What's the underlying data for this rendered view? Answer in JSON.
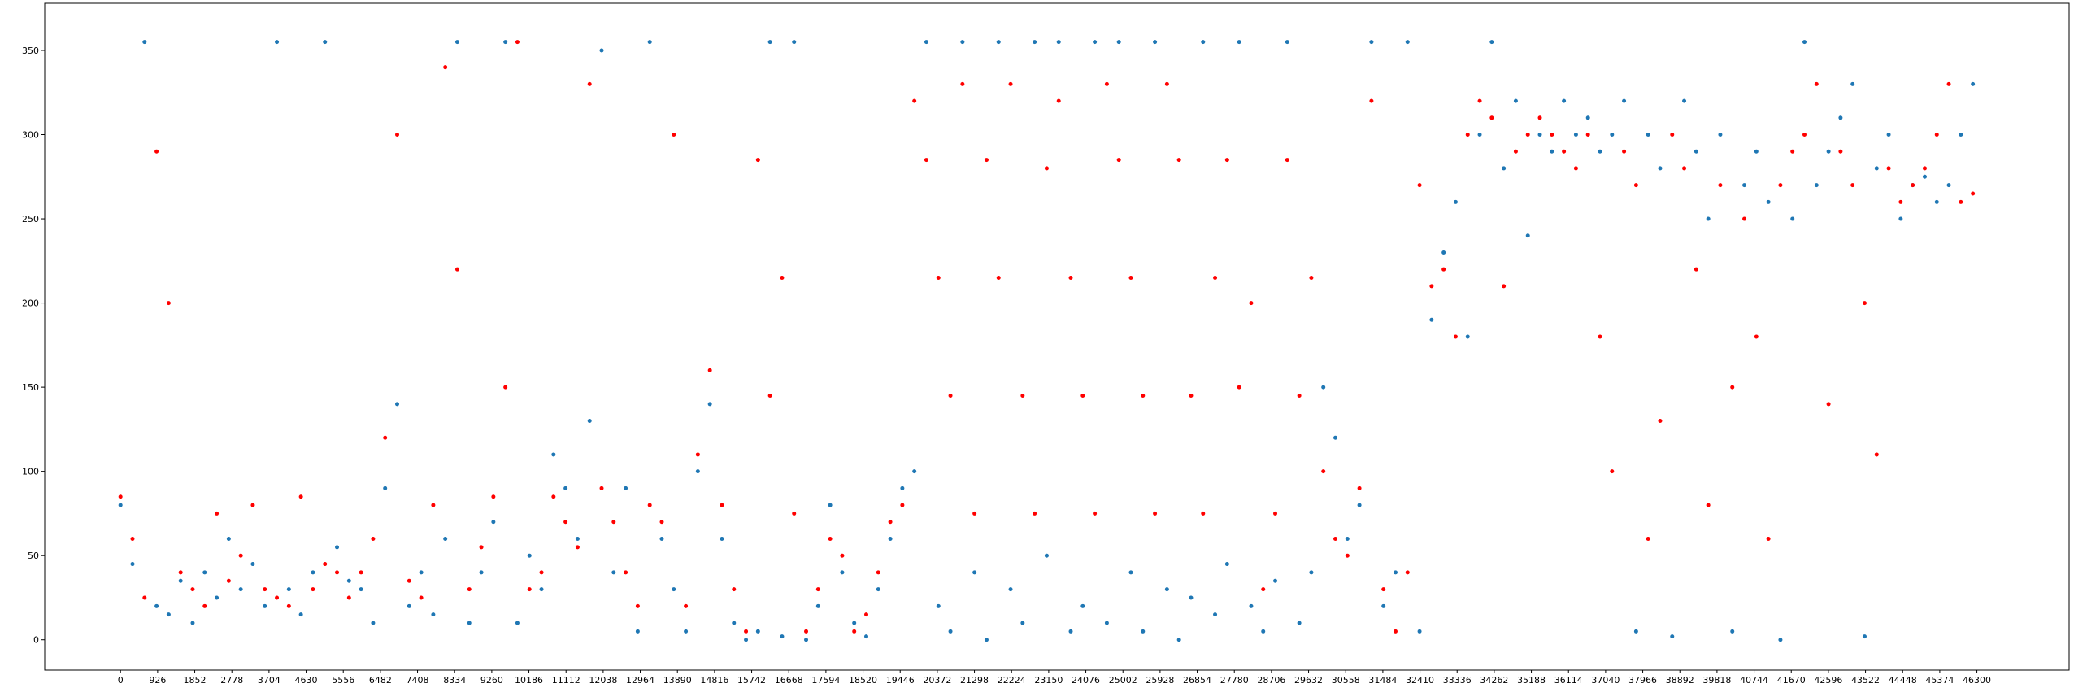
{
  "chart_data": {
    "type": "scatter",
    "x": [
      0,
      300,
      600,
      900,
      1200,
      1500,
      1800,
      2100,
      2400,
      2700,
      3000,
      3300,
      3600,
      3900,
      4200,
      4500,
      4800,
      5100,
      5400,
      5700,
      6000,
      6300,
      6600,
      6900,
      7200,
      7500,
      7800,
      8100,
      8400,
      8700,
      9000,
      9300,
      9600,
      9900,
      10200,
      10500,
      10800,
      11100,
      11400,
      11700,
      12000,
      12300,
      12600,
      12900,
      13200,
      13500,
      13800,
      14100,
      14400,
      14700,
      15000,
      15300,
      15600,
      15900,
      16200,
      16500,
      16800,
      17100,
      17400,
      17700,
      18000,
      18300,
      18600,
      18900,
      19200,
      19500,
      19800,
      20100,
      20400,
      20700,
      21000,
      21300,
      21600,
      21900,
      22200,
      22500,
      22800,
      23100,
      23400,
      23700,
      24000,
      24300,
      24600,
      24900,
      25200,
      25500,
      25800,
      26100,
      26400,
      26700,
      27000,
      27300,
      27600,
      27900,
      28200,
      28500,
      28800,
      29100,
      29400,
      29700,
      30000,
      30300,
      30600,
      30900,
      31200,
      31500,
      31800,
      32100,
      32400,
      32700,
      33000,
      33300,
      33600,
      33900,
      34200,
      34500,
      34800,
      35100,
      35400,
      35700,
      36000,
      36300,
      36600,
      36900,
      37200,
      37500,
      37800,
      38100,
      38400,
      38700,
      39000,
      39300,
      39600,
      39900,
      40200,
      40500,
      40800,
      41100,
      41400,
      41700,
      42000,
      42300,
      42600,
      42900,
      43200,
      43500,
      43800,
      44100,
      44400,
      44700,
      45000,
      45300,
      45600,
      45900,
      46200
    ],
    "series": [
      {
        "color": "#1f77b4",
        "values": [
          80,
          45,
          355,
          20,
          15,
          35,
          10,
          40,
          25,
          60,
          30,
          45,
          20,
          355,
          30,
          15,
          40,
          355,
          55,
          35,
          30,
          10,
          90,
          140,
          20,
          40,
          15,
          60,
          355,
          10,
          40,
          70,
          355,
          10,
          50,
          30,
          110,
          90,
          60,
          130,
          350,
          40,
          90,
          5,
          355,
          60,
          30,
          5,
          100,
          140,
          60,
          10,
          0,
          5,
          355,
          2,
          355,
          0,
          20,
          80,
          40,
          10,
          2,
          30,
          60,
          90,
          100,
          355,
          20,
          5,
          355,
          40,
          0,
          355,
          30,
          10,
          355,
          50,
          355,
          5,
          20,
          355,
          10,
          355,
          40,
          5,
          355,
          30,
          0,
          25,
          355,
          15,
          45,
          355,
          20,
          5,
          35,
          355,
          10,
          40,
          150,
          120,
          60,
          80,
          355,
          20,
          40,
          355,
          5,
          190,
          230,
          260,
          180,
          300,
          355,
          280,
          320,
          240,
          300,
          290,
          320,
          300,
          310,
          290,
          300,
          320,
          5,
          300,
          280,
          2,
          320,
          290,
          250,
          300,
          5,
          270,
          290,
          260,
          0,
          250,
          355,
          270,
          290,
          310,
          330,
          2,
          280,
          300,
          250,
          270,
          275,
          260,
          270,
          300,
          330
        ]
      },
      {
        "color": "red",
        "values": [
          85,
          60,
          25,
          290,
          200,
          40,
          30,
          20,
          75,
          35,
          50,
          80,
          30,
          25,
          20,
          85,
          30,
          45,
          40,
          25,
          40,
          60,
          120,
          300,
          35,
          25,
          80,
          340,
          220,
          30,
          55,
          85,
          150,
          355,
          30,
          40,
          85,
          70,
          55,
          330,
          90,
          70,
          40,
          20,
          80,
          70,
          300,
          20,
          110,
          160,
          80,
          30,
          5,
          285,
          145,
          215,
          75,
          5,
          30,
          60,
          50,
          5,
          15,
          40,
          70,
          80,
          320,
          285,
          215,
          145,
          330,
          75,
          285,
          215,
          330,
          145,
          75,
          280,
          320,
          215,
          145,
          75,
          330,
          285,
          215,
          145,
          75,
          330,
          285,
          145,
          75,
          215,
          285,
          150,
          200,
          30,
          75,
          285,
          145,
          215,
          100,
          60,
          50,
          90,
          320,
          30,
          5,
          40,
          270,
          210,
          220,
          180,
          300,
          320,
          310,
          210,
          290,
          300,
          310,
          300,
          290,
          280,
          300,
          180,
          100,
          290,
          270,
          60,
          130,
          300,
          280,
          220,
          80,
          270,
          150,
          250,
          180,
          60,
          270,
          290,
          300,
          330,
          140,
          290,
          270,
          200,
          110,
          280,
          260,
          270,
          280,
          300,
          330,
          260,
          265
        ]
      }
    ],
    "xlim": [
      -1890,
      48600
    ],
    "ylim": [
      -18,
      378
    ],
    "xticks": [
      0,
      926,
      1852,
      2778,
      3704,
      4630,
      5556,
      6482,
      7408,
      8334,
      9260,
      10186,
      11112,
      12038,
      12964,
      13890,
      14816,
      15742,
      16668,
      17594,
      18520,
      19446,
      20372,
      21298,
      22224,
      23150,
      24076,
      25002,
      25928,
      26854,
      27780,
      28706,
      29632,
      30558,
      31484,
      32410,
      33336,
      34262,
      35188,
      36114,
      37040,
      37966,
      38892,
      39818,
      40744,
      41670,
      42596,
      43522,
      44448,
      45374,
      46300
    ],
    "yticks": [
      0,
      50,
      100,
      150,
      200,
      250,
      300,
      350
    ]
  }
}
